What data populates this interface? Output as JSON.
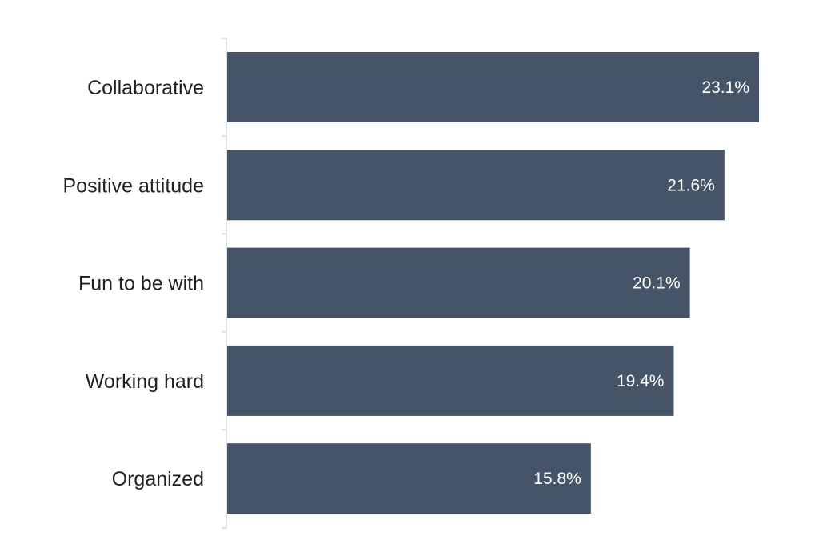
{
  "chart_data": {
    "type": "bar",
    "orientation": "horizontal",
    "categories": [
      "Collaborative",
      "Positive attitude",
      "Fun to be with",
      "Working hard",
      "Organized"
    ],
    "values": [
      23.1,
      21.6,
      20.1,
      19.4,
      15.8
    ],
    "value_labels": [
      "23.1%",
      "21.6%",
      "20.1%",
      "19.4%",
      "15.8%"
    ],
    "unit": "%",
    "xlim": [
      0,
      23.1
    ],
    "title": "",
    "xlabel": "",
    "ylabel": "",
    "grid": false,
    "legend": "none",
    "bar_color": "#465468",
    "axis_color": "#d9d9d9"
  }
}
